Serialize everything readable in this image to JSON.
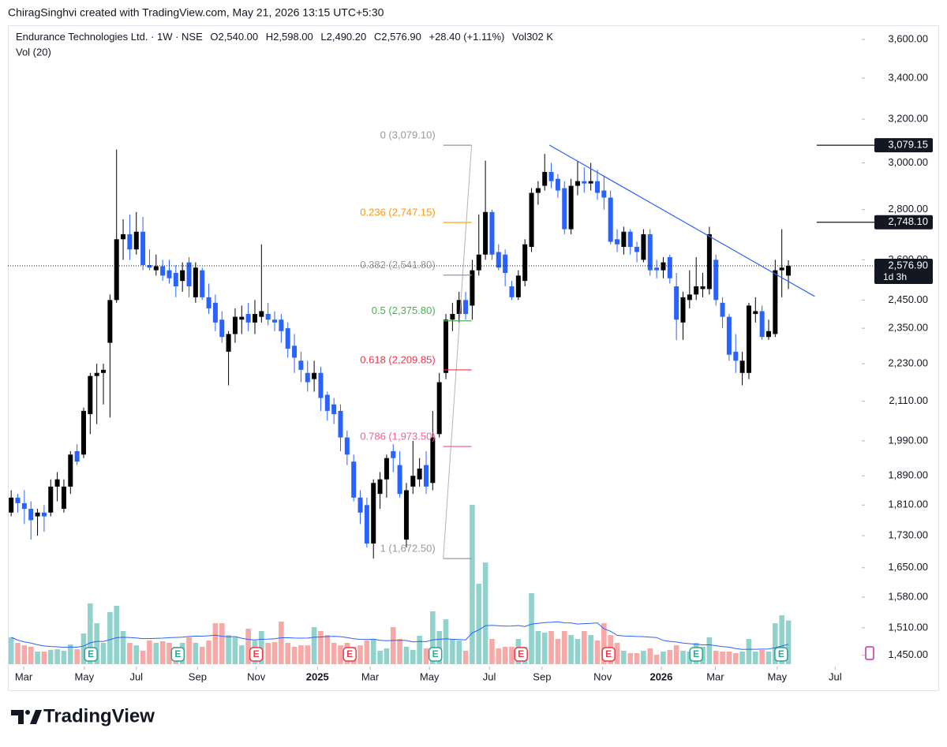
{
  "header": {
    "caption": "ChiragSinghvi created with TradingView.com, May 21, 2026 13:15 UTC+5:30"
  },
  "footer": {
    "brand": "TradingView"
  },
  "chart_data": {
    "type": "candlestick",
    "legend": {
      "title": "Endurance Technologies Ltd. · 1W · NSE",
      "items": [
        [
          "O",
          "2,540.00"
        ],
        [
          "H",
          "2,598.00"
        ],
        [
          "L",
          "2,490.20"
        ],
        [
          "C",
          "2,576.90"
        ]
      ],
      "change": "+28.40 (+1.11%)",
      "volume_key": "Vol",
      "volume_value": "302 K",
      "indicator": "Vol (20)"
    },
    "log_scale": true,
    "xlim": [
      -0.5,
      128.9
    ],
    "ylim": [
      1426,
      3676
    ],
    "xticks": [
      {
        "value": 1.9,
        "label": "Mar"
      },
      {
        "value": 11.1,
        "label": "May"
      },
      {
        "value": 19.0,
        "label": "Jul"
      },
      {
        "value": 28.3,
        "label": "Sep"
      },
      {
        "value": 37.2,
        "label": "Nov"
      },
      {
        "value": 46.5,
        "label": "2025",
        "bold": true
      },
      {
        "value": 54.5,
        "label": "Mar"
      },
      {
        "value": 63.5,
        "label": "May"
      },
      {
        "value": 72.6,
        "label": "Jul"
      },
      {
        "value": 80.6,
        "label": "Sep"
      },
      {
        "value": 89.8,
        "label": "Nov"
      },
      {
        "value": 98.7,
        "label": "2026",
        "bold": true
      },
      {
        "value": 106.9,
        "label": "Mar"
      },
      {
        "value": 116.3,
        "label": "May"
      },
      {
        "value": 125.1,
        "label": "Jul"
      }
    ],
    "yticks": [
      {
        "value": 3600,
        "label": "3,600.00"
      },
      {
        "value": 3400,
        "label": "3,400.00"
      },
      {
        "value": 3200,
        "label": "3,200.00"
      },
      {
        "value": 3000,
        "label": "3,000.00"
      },
      {
        "value": 2800,
        "label": "2,800.00"
      },
      {
        "value": 2600,
        "label": "2,600.00"
      },
      {
        "value": 2450,
        "label": "2,450.00"
      },
      {
        "value": 2350,
        "label": "2,350.00"
      },
      {
        "value": 2230,
        "label": "2,230.00"
      },
      {
        "value": 2110,
        "label": "2,110.00"
      },
      {
        "value": 1990,
        "label": "1,990.00"
      },
      {
        "value": 1890,
        "label": "1,890.00"
      },
      {
        "value": 1810,
        "label": "1,810.00"
      },
      {
        "value": 1730,
        "label": "1,730.00"
      },
      {
        "value": 1650,
        "label": "1,650.00"
      },
      {
        "value": 1580,
        "label": "1,580.00"
      },
      {
        "value": 1510,
        "label": "1,510.00"
      },
      {
        "value": 1450,
        "label": "1,450.00"
      }
    ],
    "up_color": "#000000",
    "down_color": "#2962ff",
    "volume_up_color": "#92d2cc",
    "volume_down_color": "#f7a9a7",
    "volume_ma_color": "#2962ff",
    "volume_ma_period": 20,
    "volume_ylim": [
      0,
      1100
    ],
    "open": [
      1790,
      1830,
      1815,
      1800,
      1780,
      1790,
      1790,
      1860,
      1800,
      1860,
      1960,
      1950,
      2070,
      2190,
      2200,
      2300,
      2450,
      2680,
      2700,
      2640,
      2710,
      2580,
      2560,
      2575,
      2560,
      2550,
      2520,
      2590,
      2460,
      2560,
      2460,
      2440,
      2380,
      2270,
      2330,
      2380,
      2400,
      2370,
      2390,
      2400,
      2380,
      2380,
      2350,
      2290,
      2240,
      2200,
      2180,
      2200,
      2130,
      2100,
      2080,
      2000,
      1930,
      1830,
      1810,
      1710,
      1840,
      1880,
      1960,
      1920,
      1720,
      1860,
      1880,
      1920,
      1870,
      2010,
      2200,
      2380,
      2400,
      2450,
      2430,
      2560,
      2620,
      2790,
      2630,
      2620,
      2500,
      2460,
      2520,
      2650,
      2870,
      2900,
      2960,
      2930,
      2890,
      2720,
      2900,
      2920,
      2910,
      2920,
      2880,
      2850,
      2680,
      2650,
      2710,
      2650,
      2600,
      2700,
      2570,
      2560,
      2610,
      2500,
      2370,
      2450,
      2470,
      2490,
      2490,
      2600,
      2440,
      2390,
      2270,
      2200,
      2200,
      2400,
      2410,
      2320,
      2330,
      2560,
      2540
    ],
    "high": [
      1850,
      1840,
      1850,
      1820,
      1800,
      1810,
      1880,
      1900,
      1880,
      1960,
      1980,
      2090,
      2200,
      2230,
      2230,
      2470,
      3060,
      2760,
      2780,
      2790,
      2770,
      2640,
      2620,
      2600,
      2600,
      2580,
      2590,
      2610,
      2590,
      2570,
      2510,
      2470,
      2410,
      2340,
      2420,
      2430,
      2440,
      2450,
      2660,
      2440,
      2410,
      2400,
      2370,
      2330,
      2270,
      2240,
      2240,
      2220,
      2140,
      2120,
      2100,
      2020,
      1950,
      1850,
      1830,
      1880,
      1900,
      1950,
      1980,
      1960,
      1870,
      1990,
      1940,
      1960,
      2080,
      2200,
      2400,
      2440,
      2480,
      2480,
      2600,
      2780,
      3010,
      2800,
      2660,
      2640,
      2520,
      2560,
      2680,
      2890,
      2920,
      3040,
      3000,
      2950,
      2920,
      2930,
      3010,
      2980,
      3000,
      2970,
      2940,
      2880,
      2720,
      2730,
      2720,
      2670,
      2720,
      2720,
      2600,
      2610,
      2620,
      2550,
      2480,
      2560,
      2610,
      2550,
      2730,
      2620,
      2460,
      2400,
      2330,
      2270,
      2440,
      2460,
      2430,
      2380,
      2600,
      2720,
      2598
    ],
    "low": [
      1780,
      1790,
      1760,
      1720,
      1730,
      1740,
      1780,
      1820,
      1790,
      1840,
      1920,
      1940,
      2010,
      2040,
      2100,
      2060,
      2440,
      2600,
      2600,
      2620,
      2560,
      2560,
      2540,
      2520,
      2510,
      2460,
      2480,
      2460,
      2440,
      2450,
      2400,
      2340,
      2300,
      2160,
      2300,
      2330,
      2340,
      2330,
      2370,
      2360,
      2340,
      2300,
      2250,
      2200,
      2170,
      2140,
      2140,
      2080,
      2050,
      2040,
      1960,
      1920,
      1820,
      1760,
      1700,
      1672.5,
      1800,
      1830,
      1900,
      1830,
      1700,
      1840,
      1860,
      1840,
      1850,
      2000,
      2180,
      2340,
      2370,
      2380,
      2380,
      2540,
      2600,
      2600,
      2560,
      2500,
      2450,
      2450,
      2500,
      2630,
      2820,
      2880,
      2890,
      2850,
      2700,
      2700,
      2860,
      2870,
      2880,
      2840,
      2800,
      2660,
      2630,
      2620,
      2620,
      2590,
      2590,
      2540,
      2530,
      2530,
      2510,
      2310,
      2310,
      2420,
      2450,
      2460,
      2470,
      2430,
      2350,
      2240,
      2200,
      2160,
      2180,
      2370,
      2310,
      2310,
      2320,
      2460,
      2490.2
    ],
    "close": [
      1830,
      1815,
      1800,
      1770,
      1790,
      1780,
      1860,
      1880,
      1860,
      1950,
      1930,
      2080,
      2190,
      2200,
      2210,
      2450,
      2680,
      2700,
      2640,
      2710,
      2580,
      2570,
      2575,
      2540,
      2530,
      2500,
      2560,
      2500,
      2570,
      2460,
      2420,
      2370,
      2320,
      2330,
      2390,
      2390,
      2370,
      2400,
      2410,
      2380,
      2370,
      2340,
      2280,
      2250,
      2210,
      2170,
      2200,
      2120,
      2080,
      2070,
      2000,
      1950,
      1830,
      1790,
      1710,
      1870,
      1880,
      1940,
      1940,
      1840,
      1850,
      1890,
      1910,
      1860,
      2000,
      2170,
      2380,
      2400,
      2450,
      2400,
      2560,
      2620,
      2790,
      2620,
      2570,
      2550,
      2460,
      2540,
      2660,
      2870,
      2890,
      2960,
      2920,
      2880,
      2720,
      2900,
      2920,
      2910,
      2920,
      2870,
      2850,
      2670,
      2660,
      2710,
      2650,
      2630,
      2700,
      2560,
      2560,
      2590,
      2530,
      2380,
      2460,
      2470,
      2500,
      2500,
      2700,
      2450,
      2390,
      2260,
      2240,
      2240,
      2430,
      2410,
      2320,
      2340,
      2560,
      2570,
      2576.9
    ],
    "volume": [
      185,
      147,
      130,
      120,
      87,
      87,
      98,
      103,
      93,
      136,
      103,
      212,
      420,
      283,
      147,
      360,
      403,
      229,
      147,
      130,
      93,
      163,
      147,
      158,
      147,
      120,
      147,
      185,
      147,
      120,
      163,
      283,
      283,
      201,
      185,
      130,
      245,
      163,
      229,
      147,
      152,
      294,
      147,
      120,
      130,
      130,
      256,
      229,
      201,
      147,
      130,
      147,
      120,
      130,
      163,
      174,
      93,
      109,
      256,
      174,
      120,
      98,
      196,
      109,
      365,
      229,
      310,
      174,
      163,
      93,
      1100,
      555,
      702,
      174,
      109,
      120,
      120,
      174,
      120,
      490,
      229,
      218,
      229,
      174,
      229,
      201,
      174,
      229,
      201,
      163,
      283,
      201,
      147,
      93,
      76,
      76,
      93,
      109,
      65,
      87,
      98,
      130,
      93,
      87,
      147,
      120,
      185,
      93,
      87,
      87,
      76,
      87,
      174,
      87,
      98,
      87,
      283,
      337,
      302
    ],
    "fib": {
      "start": {
        "x": 65.6,
        "price": 1672.5
      },
      "end": {
        "x": 69.9,
        "price": 3079.1
      },
      "levels": [
        {
          "ratio": 0,
          "price": 3079.1,
          "label": "0 (3,079.10)",
          "color": "#9598a1"
        },
        {
          "ratio": 0.236,
          "price": 2747.15,
          "label": "0.236 (2,747.15)",
          "color": "#ff9800"
        },
        {
          "ratio": 0.382,
          "price": 2541.8,
          "label": "0.382 (2,541.80)",
          "color": "#9598a1"
        },
        {
          "ratio": 0.5,
          "price": 2375.8,
          "label": "0.5 (2,375.80)",
          "color": "#4caf50"
        },
        {
          "ratio": 0.618,
          "price": 2209.85,
          "label": "0.618 (2,209.85)",
          "color": "#f23645"
        },
        {
          "ratio": 0.786,
          "price": 1973.5,
          "label": "0.786 (1,973.50)",
          "color": "#f06292"
        },
        {
          "ratio": 1,
          "price": 1672.5,
          "label": "1 (1,672.50)",
          "color": "#9598a1"
        }
      ]
    },
    "trendline": {
      "start": {
        "x": 81.7,
        "price": 3080
      },
      "end": {
        "x": 122,
        "price": 2463
      },
      "color": "#2962ff"
    },
    "price_tags": [
      {
        "value": 3079.15,
        "label": "3,079.15",
        "from_x": 122.3
      },
      {
        "value": 2748.1,
        "label": "2,748.10",
        "from_x": 122.3
      }
    ],
    "last_price": {
      "value": 2576.9,
      "label": "2,576.90",
      "countdown": "1d 3h"
    },
    "earnings": [
      {
        "x": 12.1,
        "label": "E",
        "color": "#26a69a"
      },
      {
        "x": 25.3,
        "label": "E",
        "color": "#26a69a"
      },
      {
        "x": 37.2,
        "label": "E",
        "color": "#f23645"
      },
      {
        "x": 51.4,
        "label": "E",
        "color": "#f23645"
      },
      {
        "x": 64.4,
        "label": "E",
        "color": "#26a69a"
      },
      {
        "x": 77.4,
        "label": "E",
        "color": "#f23645"
      },
      {
        "x": 90.7,
        "label": "E",
        "color": "#f23645"
      },
      {
        "x": 104.0,
        "label": "E",
        "color": "#26a69a"
      },
      {
        "x": 116.9,
        "label": "E",
        "color": "#26a69a"
      }
    ]
  }
}
